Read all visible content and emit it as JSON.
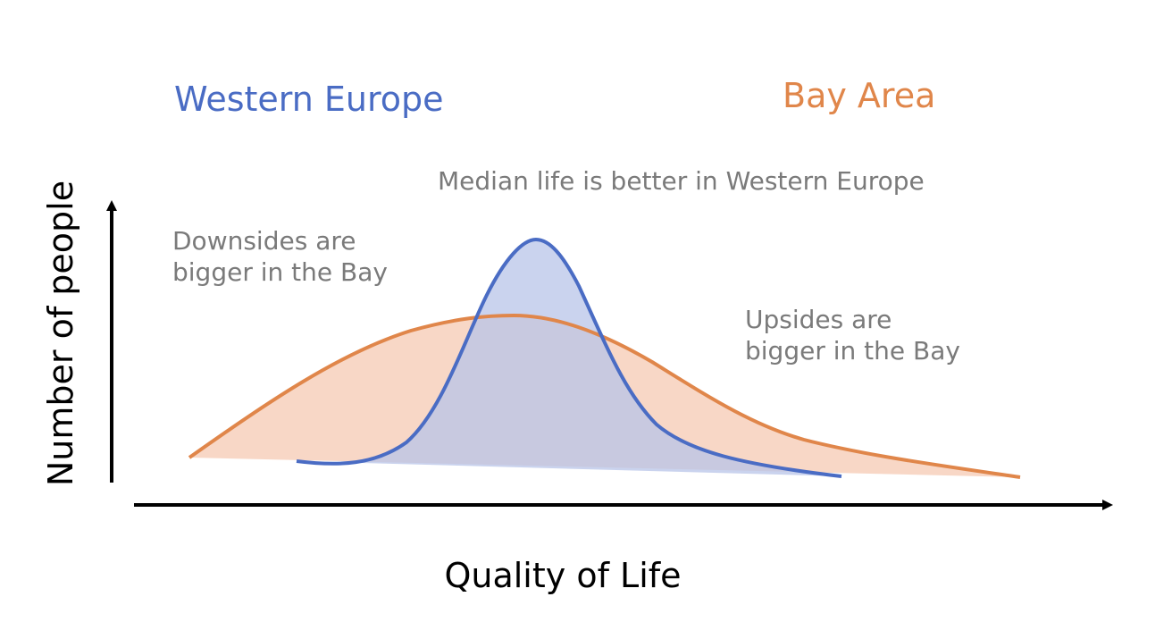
{
  "chart_data": {
    "type": "area",
    "xlabel": "Quality of Life",
    "ylabel": "Number of people",
    "series": [
      {
        "name": "Western Europe",
        "color": "#4a6cc4",
        "fill": "#c9d3ee",
        "shape": "narrow-peak",
        "relative_peak": 1.0
      },
      {
        "name": "Bay Area",
        "color": "#e0864a",
        "fill": "#f7d3c0",
        "shape": "wide-long-tailed",
        "relative_peak": 0.64
      }
    ],
    "annotations": [
      "Median life is better in Western Europe",
      "Downsides are bigger in the Bay",
      "Upsides are bigger in the Bay"
    ],
    "grid": false
  }
}
